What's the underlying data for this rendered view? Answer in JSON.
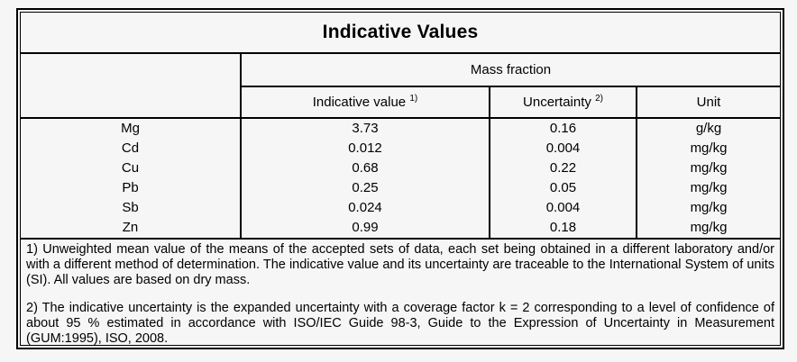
{
  "title": "Indicative Values",
  "table": {
    "group_header": "Mass fraction",
    "headers": {
      "indicative_value": "Indicative value",
      "indicative_value_sup": "1)",
      "uncertainty": "Uncertainty",
      "uncertainty_sup": "2)",
      "unit": "Unit"
    },
    "rows": [
      {
        "element": "Mg",
        "indicative_value": "3.73",
        "uncertainty": "0.16",
        "unit": "g/kg"
      },
      {
        "element": "Cd",
        "indicative_value": "0.012",
        "uncertainty": "0.004",
        "unit": "mg/kg"
      },
      {
        "element": "Cu",
        "indicative_value": "0.68",
        "uncertainty": "0.22",
        "unit": "mg/kg"
      },
      {
        "element": "Pb",
        "indicative_value": "0.25",
        "uncertainty": "0.05",
        "unit": "mg/kg"
      },
      {
        "element": "Sb",
        "indicative_value": "0.024",
        "uncertainty": "0.004",
        "unit": "mg/kg"
      },
      {
        "element": "Zn",
        "indicative_value": "0.99",
        "uncertainty": "0.18",
        "unit": "mg/kg"
      }
    ]
  },
  "footnotes": {
    "note1": "1) Unweighted mean value of the means of the accepted sets of data, each set being obtained in a different laboratory and/or with a different method of determination. The indicative value and its uncertainty are traceable to the International System of units (SI). All values are based on dry mass.",
    "note2": "2) The indicative uncertainty is the expanded uncertainty with a coverage factor k = 2 corresponding to a level of confidence of about 95 % estimated in accordance with ISO/IEC Guide 98-3, Guide to the Expression of Uncertainty in Measurement (GUM:1995), ISO, 2008."
  },
  "colors": {
    "background": "#f6f6f6",
    "border": "#000000",
    "text": "#000000"
  }
}
